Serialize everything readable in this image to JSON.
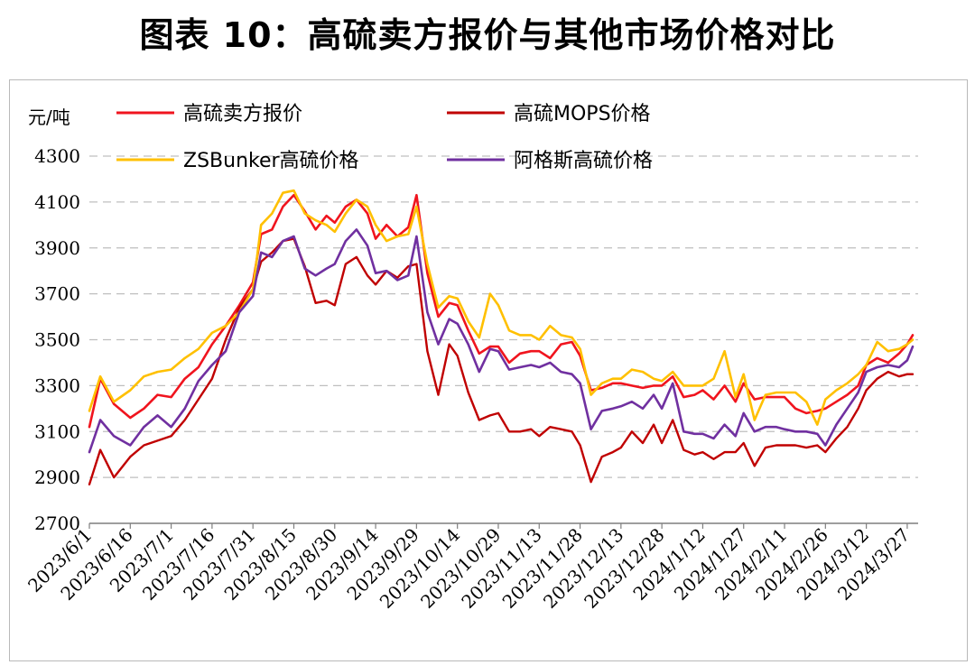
{
  "title": "图表 10：高硫卖方报价与其他市场价格对比",
  "chart_data": {
    "type": "line",
    "ylabel": "元/吨",
    "ylim": [
      2700,
      4300
    ],
    "yticks": [
      2700,
      2900,
      3100,
      3300,
      3500,
      3700,
      3900,
      4100,
      4300
    ],
    "grid": "horizontal dashed",
    "legend_position": "top",
    "x_start": "2023/6/1",
    "x_end": "2024/3/31",
    "xticks": [
      "2023/6/1",
      "2023/6/16",
      "2023/7/1",
      "2023/7/16",
      "2023/7/31",
      "2023/8/15",
      "2023/8/30",
      "2023/9/14",
      "2023/9/29",
      "2023/10/14",
      "2023/10/29",
      "2023/11/13",
      "2023/11/28",
      "2023/12/13",
      "2023/12/28",
      "2024/1/12",
      "2024/1/27",
      "2024/2/11",
      "2024/2/26",
      "2024/3/12",
      "2024/3/27"
    ],
    "x": [
      "2023/6/1",
      "2023/6/5",
      "2023/6/10",
      "2023/6/16",
      "2023/6/21",
      "2023/6/26",
      "2023/7/1",
      "2023/7/6",
      "2023/7/11",
      "2023/7/16",
      "2023/7/21",
      "2023/7/26",
      "2023/7/31",
      "2023/8/3",
      "2023/8/7",
      "2023/8/11",
      "2023/8/15",
      "2023/8/19",
      "2023/8/23",
      "2023/8/27",
      "2023/8/30",
      "2023/9/3",
      "2023/9/7",
      "2023/9/11",
      "2023/9/14",
      "2023/9/18",
      "2023/9/22",
      "2023/9/26",
      "2023/9/29",
      "2023/10/3",
      "2023/10/7",
      "2023/10/11",
      "2023/10/14",
      "2023/10/18",
      "2023/10/22",
      "2023/10/26",
      "2023/10/29",
      "2023/11/2",
      "2023/11/6",
      "2023/11/10",
      "2023/11/13",
      "2023/11/17",
      "2023/11/21",
      "2023/11/25",
      "2023/11/28",
      "2023/12/2",
      "2023/12/6",
      "2023/12/10",
      "2023/12/13",
      "2023/12/17",
      "2023/12/21",
      "2023/12/25",
      "2023/12/28",
      "2024/1/1",
      "2024/1/5",
      "2024/1/9",
      "2024/1/12",
      "2024/1/16",
      "2024/1/20",
      "2024/1/24",
      "2024/1/27",
      "2024/1/31",
      "2024/2/4",
      "2024/2/8",
      "2024/2/11",
      "2024/2/15",
      "2024/2/19",
      "2024/2/23",
      "2024/2/26",
      "2024/3/1",
      "2024/3/5",
      "2024/3/9",
      "2024/3/12",
      "2024/3/16",
      "2024/3/20",
      "2024/3/24",
      "2024/3/27",
      "2024/3/29"
    ],
    "series": [
      {
        "name": "高硫卖方报价",
        "color": "#f0141e",
        "width": 2.6,
        "values": [
          3120,
          3330,
          3220,
          3160,
          3200,
          3260,
          3250,
          3330,
          3380,
          3480,
          3560,
          3650,
          3750,
          3960,
          3980,
          4080,
          4130,
          4060,
          3980,
          4040,
          4010,
          4080,
          4110,
          4050,
          3940,
          4000,
          3950,
          3990,
          4130,
          3790,
          3600,
          3660,
          3650,
          3540,
          3440,
          3470,
          3470,
          3400,
          3440,
          3450,
          3450,
          3420,
          3480,
          3490,
          3430,
          3280,
          3290,
          3310,
          3310,
          3300,
          3290,
          3300,
          3300,
          3340,
          3250,
          3260,
          3280,
          3240,
          3300,
          3230,
          3310,
          3240,
          3250,
          3250,
          3250,
          3200,
          3180,
          3190,
          3200,
          3230,
          3260,
          3300,
          3390,
          3420,
          3400,
          3440,
          3480,
          3520
        ]
      },
      {
        "name": "高硫MOPS价格",
        "color": "#c00000",
        "width": 2.4,
        "values": [
          2870,
          3020,
          2900,
          2990,
          3040,
          3060,
          3080,
          3150,
          3240,
          3330,
          3500,
          3640,
          3720,
          3840,
          3880,
          3930,
          3940,
          3820,
          3660,
          3670,
          3650,
          3830,
          3860,
          3780,
          3740,
          3800,
          3770,
          3820,
          3830,
          3450,
          3260,
          3480,
          3430,
          3270,
          3150,
          3170,
          3180,
          3100,
          3100,
          3110,
          3080,
          3120,
          3110,
          3100,
          3040,
          2880,
          2990,
          3010,
          3030,
          3100,
          3050,
          3130,
          3050,
          3150,
          3020,
          3000,
          3010,
          2980,
          3010,
          3010,
          3050,
          2950,
          3030,
          3040,
          3040,
          3040,
          3030,
          3040,
          3010,
          3070,
          3120,
          3200,
          3280,
          3330,
          3360,
          3340,
          3350,
          3350
        ]
      },
      {
        "name": "ZSBunker高硫价格",
        "color": "#ffc000",
        "width": 2.6,
        "values": [
          3190,
          3340,
          3230,
          3280,
          3340,
          3360,
          3370,
          3420,
          3460,
          3530,
          3560,
          3620,
          3720,
          4000,
          4050,
          4140,
          4150,
          4050,
          4020,
          4000,
          3970,
          4050,
          4110,
          4080,
          4000,
          3930,
          3950,
          3960,
          4080,
          3830,
          3640,
          3690,
          3680,
          3580,
          3510,
          3700,
          3650,
          3540,
          3520,
          3520,
          3500,
          3560,
          3520,
          3510,
          3460,
          3260,
          3310,
          3330,
          3330,
          3370,
          3360,
          3330,
          3320,
          3360,
          3300,
          3300,
          3300,
          3330,
          3450,
          3250,
          3350,
          3150,
          3260,
          3270,
          3270,
          3270,
          3230,
          3130,
          3240,
          3280,
          3310,
          3350,
          3390,
          3490,
          3450,
          3460,
          3480,
          3500
        ]
      },
      {
        "name": "阿格斯高硫价格",
        "color": "#7030a0",
        "width": 2.6,
        "values": [
          3010,
          3150,
          3080,
          3040,
          3120,
          3170,
          3120,
          3200,
          3320,
          3390,
          3450,
          3620,
          3690,
          3880,
          3860,
          3930,
          3950,
          3810,
          3780,
          3810,
          3830,
          3930,
          3980,
          3910,
          3790,
          3800,
          3760,
          3780,
          3950,
          3620,
          3480,
          3590,
          3570,
          3480,
          3360,
          3460,
          3450,
          3370,
          3380,
          3390,
          3380,
          3400,
          3360,
          3350,
          3310,
          3110,
          3190,
          3200,
          3210,
          3230,
          3200,
          3260,
          3200,
          3310,
          3100,
          3090,
          3090,
          3070,
          3130,
          3080,
          3180,
          3100,
          3120,
          3120,
          3110,
          3100,
          3100,
          3090,
          3040,
          3130,
          3200,
          3270,
          3360,
          3380,
          3390,
          3380,
          3410,
          3470
        ]
      }
    ]
  }
}
